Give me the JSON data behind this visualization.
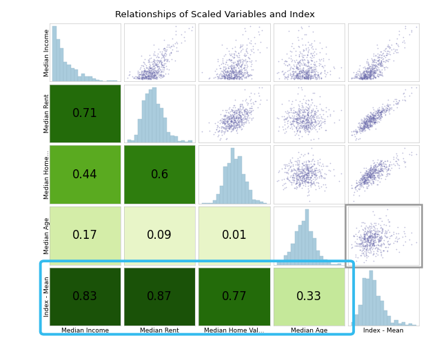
{
  "title": "Relationships of Scaled Variables and Index",
  "xlabels": [
    "Median Income",
    "Median Rent",
    "Median Home Val...",
    "Median Age",
    "Index - Mean"
  ],
  "ylabels": [
    "Median Income",
    "Median Rent",
    "Median Home...",
    "Median Age",
    "Index - Mean"
  ],
  "correlations": [
    [
      null,
      null,
      null,
      null,
      null
    ],
    [
      0.71,
      null,
      null,
      null,
      null
    ],
    [
      0.44,
      0.6,
      null,
      null,
      null
    ],
    [
      0.17,
      0.09,
      0.01,
      null,
      null
    ],
    [
      0.83,
      0.87,
      0.77,
      0.33,
      null
    ]
  ],
  "scatter_color": "#6666aa",
  "hist_color": "#aaccdd",
  "hist_edge_color": "#99bbcc",
  "blue_box_color": "#33bbee",
  "title_fontsize": 9.5,
  "label_fontsize": 6.5,
  "corr_fontsize": 12,
  "background_color": "#ffffff",
  "n_points": 500,
  "hist_bins": 18
}
